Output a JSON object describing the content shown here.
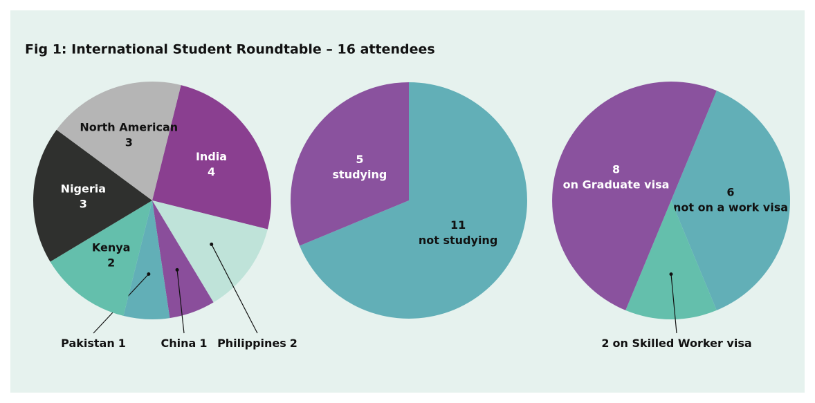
{
  "title": "Fig 1: International Student Roundtable – 16 attendees",
  "chart_data": [
    {
      "type": "pie",
      "categories": [
        "India",
        "Philippines",
        "China",
        "Pakistan",
        "Kenya",
        "Nigeria",
        "North American"
      ],
      "values": [
        4,
        2,
        1,
        1,
        2,
        3,
        3
      ],
      "colors": [
        "#8a3f90",
        "#bfe3d9",
        "#8a4e9b",
        "#62afb7",
        "#64bfac",
        "#2f302e",
        "#b5b5b5"
      ]
    },
    {
      "type": "pie",
      "categories": [
        "not studying",
        "studying"
      ],
      "values": [
        11,
        5
      ],
      "colors": [
        "#62afb7",
        "#8a529e"
      ]
    },
    {
      "type": "pie",
      "categories": [
        "not on a work visa",
        "on Skilled Worker visa",
        "on Graduate visa"
      ],
      "values": [
        6,
        2,
        8
      ],
      "colors": [
        "#62afb7",
        "#64bfac",
        "#8a529e"
      ]
    }
  ]
}
